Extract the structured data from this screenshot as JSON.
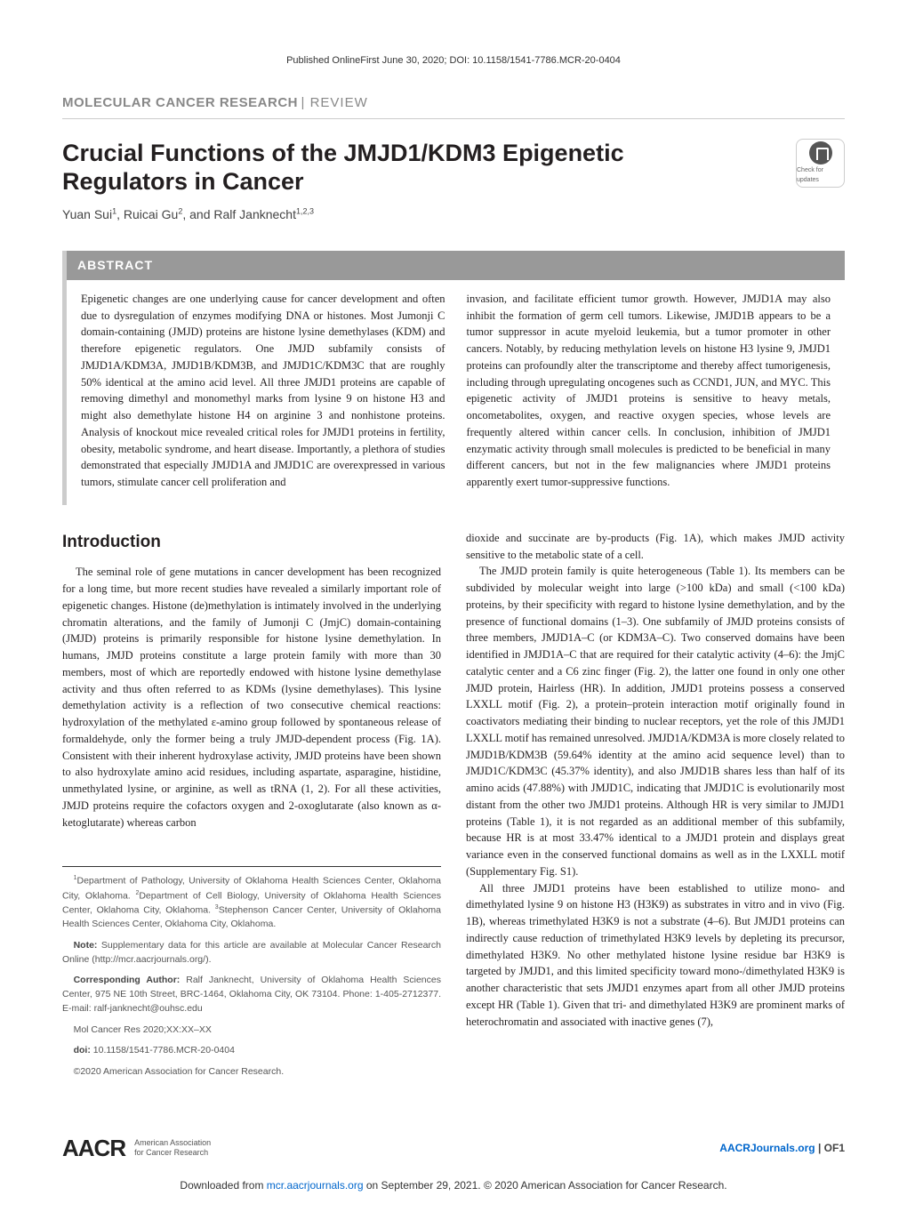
{
  "top_line": "Published OnlineFirst June 30, 2020; DOI: 10.1158/1541-7786.MCR-20-0404",
  "journal": {
    "name": "MOLECULAR CANCER RESEARCH",
    "divider": " | ",
    "article_type": "REVIEW"
  },
  "title": "Crucial Functions of the JMJD1/KDM3 Epigenetic Regulators in Cancer",
  "check_updates_label": "Check for updates",
  "authors_html": "Yuan Sui<sup>1</sup>, Ruicai Gu<sup>2</sup>, and Ralf Janknecht<sup>1,2,3</sup>",
  "abstract": {
    "heading": "ABSTRACT",
    "col1": "Epigenetic changes are one underlying cause for cancer development and often due to dysregulation of enzymes modifying DNA or histones. Most Jumonji C domain-containing (JMJD) proteins are histone lysine demethylases (KDM) and therefore epigenetic regulators. One JMJD subfamily consists of JMJD1A/KDM3A, JMJD1B/KDM3B, and JMJD1C/KDM3C that are roughly 50% identical at the amino acid level. All three JMJD1 proteins are capable of removing dimethyl and monomethyl marks from lysine 9 on histone H3 and might also demethylate histone H4 on arginine 3 and nonhistone proteins. Analysis of knockout mice revealed critical roles for JMJD1 proteins in fertility, obesity, metabolic syndrome, and heart disease. Importantly, a plethora of studies demonstrated that especially JMJD1A and JMJD1C are overexpressed in various tumors, stimulate cancer cell proliferation and",
    "col2": "invasion, and facilitate efficient tumor growth. However, JMJD1A may also inhibit the formation of germ cell tumors. Likewise, JMJD1B appears to be a tumor suppressor in acute myeloid leukemia, but a tumor promoter in other cancers. Notably, by reducing methylation levels on histone H3 lysine 9, JMJD1 proteins can profoundly alter the transcriptome and thereby affect tumorigenesis, including through upregulating oncogenes such as CCND1, JUN, and MYC. This epigenetic activity of JMJD1 proteins is sensitive to heavy metals, oncometabolites, oxygen, and reactive oxygen species, whose levels are frequently altered within cancer cells. In conclusion, inhibition of JMJD1 enzymatic activity through small molecules is predicted to be beneficial in many different cancers, but not in the few malignancies where JMJD1 proteins apparently exert tumor-suppressive functions."
  },
  "intro": {
    "heading": "Introduction",
    "p1": "The seminal role of gene mutations in cancer development has been recognized for a long time, but more recent studies have revealed a similarly important role of epigenetic changes. Histone (de)methylation is intimately involved in the underlying chromatin alterations, and the family of Jumonji C (JmjC) domain-containing (JMJD) proteins is primarily responsible for histone lysine demethylation. In humans, JMJD proteins constitute a large protein family with more than 30 members, most of which are reportedly endowed with histone lysine demethylase activity and thus often referred to as KDMs (lysine demethylases). This lysine demethylation activity is a reflection of two consecutive chemical reactions: hydroxylation of the methylated ε-amino group followed by spontaneous release of formaldehyde, only the former being a truly JMJD-dependent process (Fig. 1A). Consistent with their inherent hydroxylase activity, JMJD proteins have been shown to also hydroxylate amino acid residues, including aspartate, asparagine, histidine, unmethylated lysine, or arginine, as well as tRNA (1, 2). For all these activities, JMJD proteins require the cofactors oxygen and 2-oxoglutarate (also known as α-ketoglutarate) whereas carbon",
    "p2": "dioxide and succinate are by-products (Fig. 1A), which makes JMJD activity sensitive to the metabolic state of a cell.",
    "p3": "The JMJD protein family is quite heterogeneous (Table 1). Its members can be subdivided by molecular weight into large (>100 kDa) and small (<100 kDa) proteins, by their specificity with regard to histone lysine demethylation, and by the presence of functional domains (1–3). One subfamily of JMJD proteins consists of three members, JMJD1A–C (or KDM3A–C). Two conserved domains have been identified in JMJD1A–C that are required for their catalytic activity (4–6): the JmjC catalytic center and a C6 zinc finger (Fig. 2), the latter one found in only one other JMJD protein, Hairless (HR). In addition, JMJD1 proteins possess a conserved LXXLL motif (Fig. 2), a protein–protein interaction motif originally found in coactivators mediating their binding to nuclear receptors, yet the role of this JMJD1 LXXLL motif has remained unresolved. JMJD1A/KDM3A is more closely related to JMJD1B/KDM3B (59.64% identity at the amino acid sequence level) than to JMJD1C/KDM3C (45.37% identity), and also JMJD1B shares less than half of its amino acids (47.88%) with JMJD1C, indicating that JMJD1C is evolutionarily most distant from the other two JMJD1 proteins. Although HR is very similar to JMJD1 proteins (Table 1), it is not regarded as an additional member of this subfamily, because HR is at most 33.47% identical to a JMJD1 protein and displays great variance even in the conserved functional domains as well as in the LXXLL motif (Supplementary Fig. S1).",
    "p4": "All three JMJD1 proteins have been established to utilize mono- and dimethylated lysine 9 on histone H3 (H3K9) as substrates in vitro and in vivo (Fig. 1B), whereas trimethylated H3K9 is not a substrate (4–6). But JMJD1 proteins can indirectly cause reduction of trimethylated H3K9 levels by depleting its precursor, dimethylated H3K9. No other methylated histone lysine residue bar H3K9 is targeted by JMJD1, and this limited specificity toward mono-/dimethylated H3K9 is another characteristic that sets JMJD1 enzymes apart from all other JMJD proteins except HR (Table 1). Given that tri- and dimethylated H3K9 are prominent marks of heterochromatin and associated with inactive genes (7),"
  },
  "affiliations": {
    "depts": "<sup>1</sup>Department of Pathology, University of Oklahoma Health Sciences Center, Oklahoma City, Oklahoma. <sup>2</sup>Department of Cell Biology, University of Oklahoma Health Sciences Center, Oklahoma City, Oklahoma. <sup>3</sup>Stephenson Cancer Center, University of Oklahoma Health Sciences Center, Oklahoma City, Oklahoma.",
    "note_label": "Note:",
    "note": " Supplementary data for this article are available at Molecular Cancer Research Online (http://mcr.aacrjournals.org/).",
    "corr_label": "Corresponding Author:",
    "corr": " Ralf Janknecht, University of Oklahoma Health Sciences Center, 975 NE 10th Street, BRC-1464, Oklahoma City, OK 73104. Phone: 1-405-2712377. E-mail: ralf-janknecht@ouhsc.edu",
    "citation": "Mol Cancer Res 2020;XX:XX–XX",
    "doi_label": "doi:",
    "doi": " 10.1158/1541-7786.MCR-20-0404",
    "copyright": "©2020 American Association for Cancer Research."
  },
  "footer": {
    "logo_text": "AACR",
    "logo_sub1": "American Association",
    "logo_sub2": "for Cancer Research",
    "page_ref_link": "AACRJournals.org",
    "page_ref_divider": " | ",
    "page_ref_num": "OF1"
  },
  "download": {
    "prefix": "Downloaded from ",
    "link_text": "mcr.aacrjournals.org",
    "suffix": " on September 29, 2021. © 2020 American Association for Cancer Research."
  },
  "colors": {
    "text": "#231f20",
    "muted": "#888888",
    "abstract_bg": "#999999",
    "border": "#cccccc",
    "link": "#0066cc"
  }
}
